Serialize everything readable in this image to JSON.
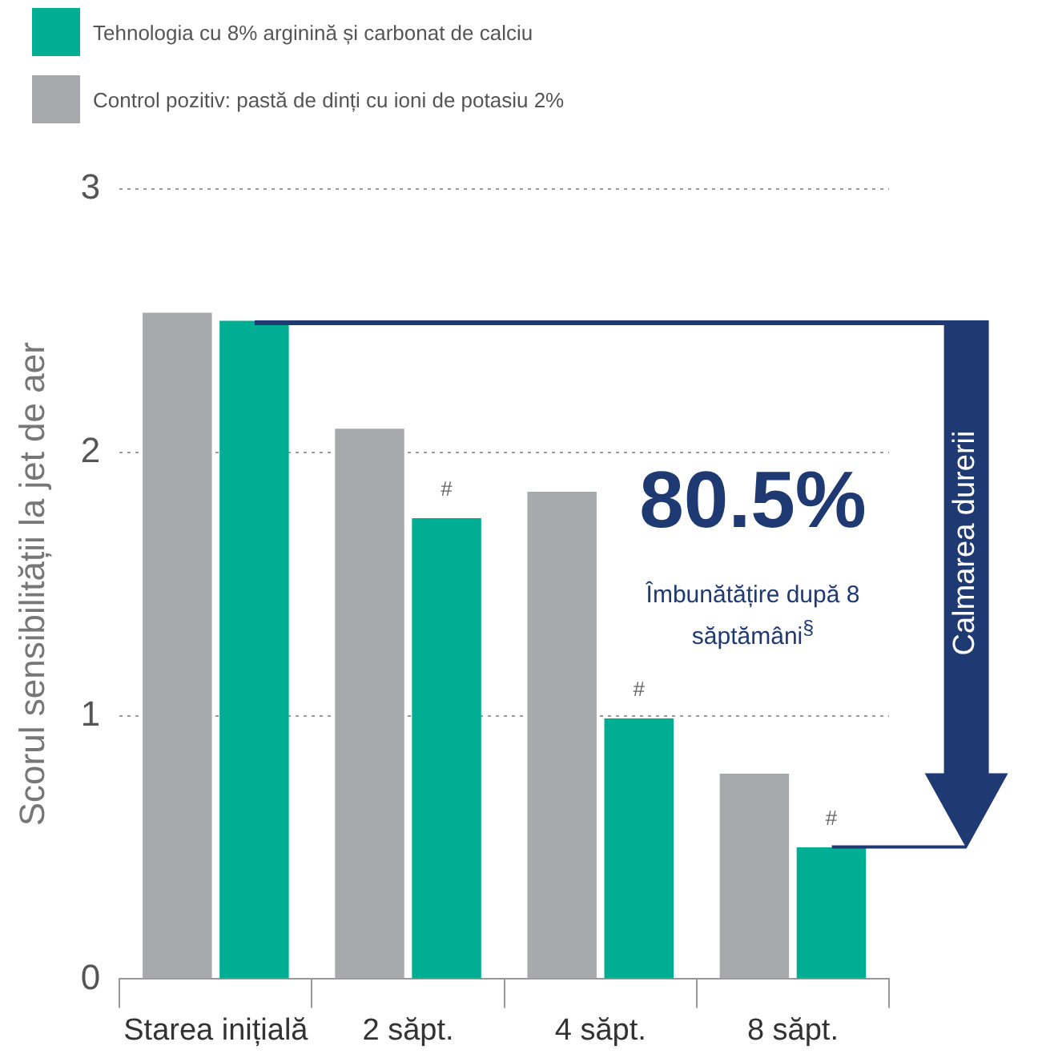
{
  "chart_data": {
    "type": "bar",
    "ylabel": "Scorul sensibilității la jet de aer",
    "categories": [
      "Starea inițială",
      "2 săpt.",
      "4 săpt.",
      "8 săpt."
    ],
    "series": [
      {
        "name": "Control pozitiv: pastă de dinți cu ioni de potasiu 2%",
        "color": "#a7a8ac",
        "values": [
          2.53,
          2.09,
          1.85,
          0.78
        ]
      },
      {
        "name": "Tehnologia cu 8% arginină și carbonat de calciu",
        "color": "#00ae94",
        "values": [
          2.5,
          1.75,
          0.99,
          0.5
        ]
      }
    ],
    "ylim": [
      0,
      3
    ],
    "yticks": [
      0,
      1,
      2,
      3
    ],
    "grid": "y",
    "legend": "top left",
    "annotations": [
      {
        "text": "#",
        "x": "2 săpt.",
        "y": 1.75
      },
      {
        "text": "#",
        "x": "4 săpt.",
        "y": 0.99
      },
      {
        "text": "#",
        "x": "8 săpt.",
        "y": 0.5
      },
      "80.5%",
      "Îmbunătățire după 8 săptămâni$^{§}$",
      "Calmarea durerii"
    ]
  }
}
